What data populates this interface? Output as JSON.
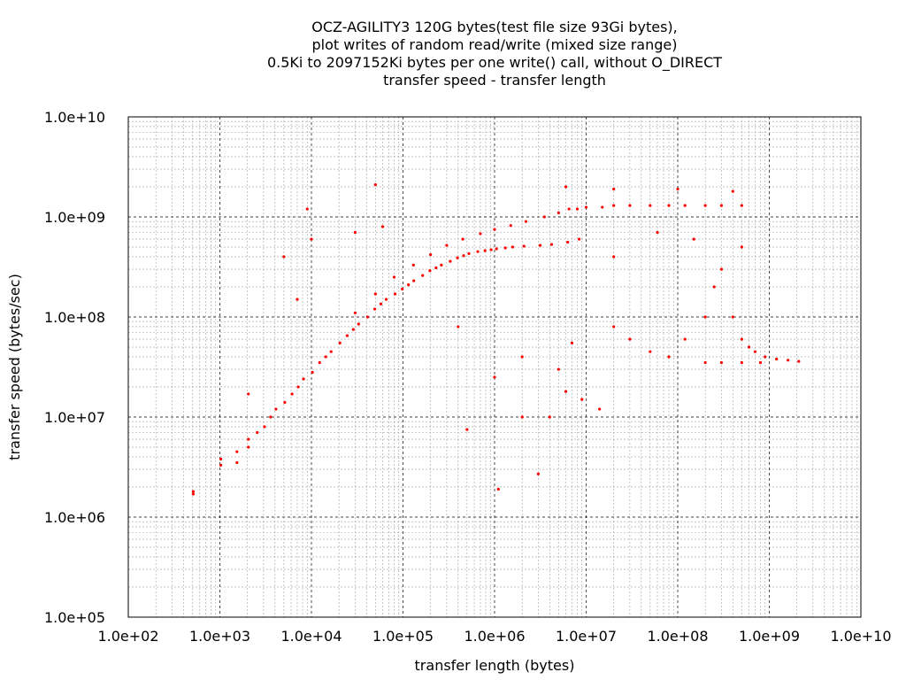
{
  "chart_data": {
    "type": "scatter",
    "title_lines": [
      "OCZ-AGILITY3 120G bytes(test file size 93Gi bytes),",
      "plot writes of random read/write (mixed size range)",
      "0.5Ki to 2097152Ki bytes per one write() call, without O_DIRECT",
      "transfer speed - transfer length"
    ],
    "xlabel": "transfer length (bytes)",
    "ylabel": "transfer speed (bytes/sec)",
    "x_scale": "log",
    "y_scale": "log",
    "xlim": [
      100,
      10000000000
    ],
    "ylim": [
      100000,
      10000000000
    ],
    "x_ticks": [
      {
        "value": 100,
        "label": "1.0e+02"
      },
      {
        "value": 1000,
        "label": "1.0e+03"
      },
      {
        "value": 10000,
        "label": "1.0e+04"
      },
      {
        "value": 100000,
        "label": "1.0e+05"
      },
      {
        "value": 1000000,
        "label": "1.0e+06"
      },
      {
        "value": 10000000,
        "label": "1.0e+07"
      },
      {
        "value": 100000000,
        "label": "1.0e+08"
      },
      {
        "value": 1000000000,
        "label": "1.0e+09"
      },
      {
        "value": 10000000000,
        "label": "1.0e+10"
      }
    ],
    "y_ticks": [
      {
        "value": 100000,
        "label": "1.0e+05"
      },
      {
        "value": 1000000,
        "label": "1.0e+06"
      },
      {
        "value": 10000000,
        "label": "1.0e+07"
      },
      {
        "value": 100000000,
        "label": "1.0e+08"
      },
      {
        "value": 1000000000,
        "label": "1.0e+09"
      },
      {
        "value": 10000000000,
        "label": "1.0e+10"
      }
    ],
    "grid": true,
    "legend": "none",
    "point_color": "#ff0000",
    "major_grid_color": "#000000",
    "minor_grid_color": "#a0a0a0",
    "series": [
      {
        "points": [
          [
            512,
            1700000
          ],
          [
            512,
            1800000
          ],
          [
            1024,
            3300000
          ],
          [
            1024,
            3800000
          ],
          [
            1536,
            3500000
          ],
          [
            1536,
            4500000
          ],
          [
            2048,
            5000000
          ],
          [
            2048,
            6000000
          ],
          [
            2048,
            17000000
          ],
          [
            2560,
            7000000
          ],
          [
            3072,
            8000000
          ],
          [
            3584,
            10000000
          ],
          [
            4096,
            12000000
          ],
          [
            5120,
            14000000
          ],
          [
            6144,
            17000000
          ],
          [
            7168,
            20000000
          ],
          [
            8192,
            24000000
          ],
          [
            10240,
            28000000
          ],
          [
            12288,
            35000000
          ],
          [
            14336,
            40000000
          ],
          [
            16384,
            45000000
          ],
          [
            20480,
            55000000
          ],
          [
            24576,
            65000000
          ],
          [
            28672,
            75000000
          ],
          [
            32768,
            85000000
          ],
          [
            40960,
            100000000
          ],
          [
            49152,
            120000000
          ],
          [
            57344,
            135000000
          ],
          [
            65536,
            150000000
          ],
          [
            81920,
            170000000
          ],
          [
            98304,
            190000000
          ],
          [
            114688,
            210000000
          ],
          [
            131072,
            230000000
          ],
          [
            163840,
            260000000
          ],
          [
            196608,
            290000000
          ],
          [
            229376,
            310000000
          ],
          [
            262144,
            330000000
          ],
          [
            327680,
            360000000
          ],
          [
            393216,
            390000000
          ],
          [
            458752,
            410000000
          ],
          [
            524288,
            430000000
          ],
          [
            655360,
            450000000
          ],
          [
            786432,
            460000000
          ],
          [
            917504,
            470000000
          ],
          [
            1048576,
            480000000
          ],
          [
            1310720,
            490000000
          ],
          [
            1572864,
            500000000
          ],
          [
            2097152,
            510000000
          ],
          [
            3145728,
            520000000
          ],
          [
            4194304,
            530000000
          ],
          [
            6291456,
            560000000
          ],
          [
            8388608,
            600000000
          ],
          [
            30000,
            110000000
          ],
          [
            50000,
            170000000
          ],
          [
            80000,
            250000000
          ],
          [
            130000,
            330000000
          ],
          [
            200000,
            420000000
          ],
          [
            300000,
            520000000
          ],
          [
            450000,
            600000000
          ],
          [
            700000,
            680000000
          ],
          [
            1000000,
            750000000
          ],
          [
            1500000,
            820000000
          ],
          [
            2200000,
            900000000
          ],
          [
            3500000,
            1000000000
          ],
          [
            5000000,
            1100000000
          ],
          [
            6500000,
            1200000000
          ],
          [
            8000000,
            1200000000
          ],
          [
            10000000,
            1250000000
          ],
          [
            15000000,
            1250000000
          ],
          [
            20000000,
            1300000000
          ],
          [
            30000000,
            1300000000
          ],
          [
            50000000,
            1300000000
          ],
          [
            80000000,
            1300000000
          ],
          [
            120000000,
            1300000000
          ],
          [
            200000000,
            1300000000
          ],
          [
            300000000,
            1300000000
          ],
          [
            500000000,
            1300000000
          ],
          [
            6000000,
            2000000000
          ],
          [
            20000000,
            1900000000
          ],
          [
            100000000,
            1900000000
          ],
          [
            400000000,
            1800000000
          ],
          [
            20000000,
            80000000
          ],
          [
            30000000,
            60000000
          ],
          [
            50000000,
            45000000
          ],
          [
            80000000,
            40000000
          ],
          [
            120000000,
            60000000
          ],
          [
            200000000,
            100000000
          ],
          [
            300000000,
            300000000
          ],
          [
            500000000,
            500000000
          ],
          [
            400000000,
            100000000
          ],
          [
            500000000,
            60000000
          ],
          [
            600000000,
            50000000
          ],
          [
            700000000,
            45000000
          ],
          [
            900000000,
            40000000
          ],
          [
            1200000000,
            38000000
          ],
          [
            1600000000,
            37000000
          ],
          [
            2097152000,
            36000000
          ],
          [
            200000000,
            35000000
          ],
          [
            300000000,
            35000000
          ],
          [
            500000000,
            35000000
          ],
          [
            800000000,
            35000000
          ],
          [
            20000000,
            400000000
          ],
          [
            60000000,
            700000000
          ],
          [
            150000000,
            600000000
          ],
          [
            250000000,
            200000000
          ],
          [
            9000,
            1200000000
          ],
          [
            50000,
            2100000000
          ],
          [
            1100000,
            1900000
          ],
          [
            3000000,
            2700000
          ],
          [
            4000000,
            10000000
          ],
          [
            2000000,
            10000000
          ],
          [
            500000,
            7500000
          ],
          [
            6000000,
            18000000
          ],
          [
            9000000,
            15000000
          ],
          [
            14000000,
            12000000
          ],
          [
            5000,
            400000000
          ],
          [
            7000,
            150000000
          ],
          [
            10000,
            600000000
          ],
          [
            30000,
            700000000
          ],
          [
            60000,
            800000000
          ],
          [
            400000,
            80000000
          ],
          [
            1000000,
            25000000
          ],
          [
            2000000,
            40000000
          ],
          [
            5000000,
            30000000
          ],
          [
            7000000,
            55000000
          ]
        ]
      }
    ]
  }
}
